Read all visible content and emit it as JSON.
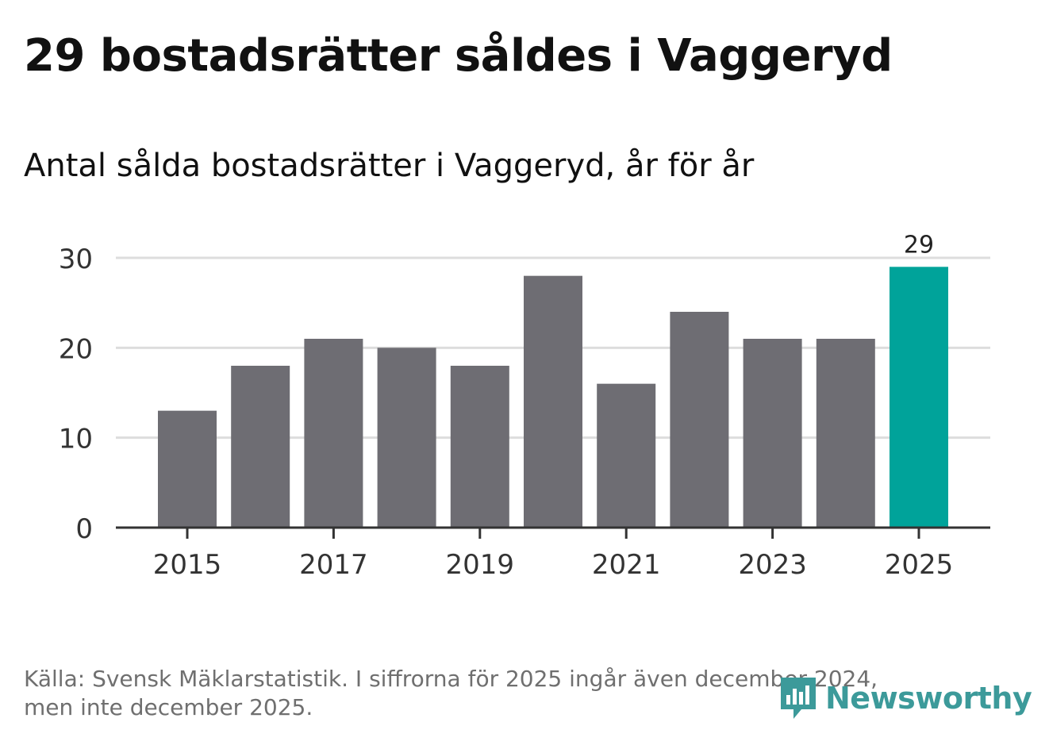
{
  "header": {
    "title": "29 bostadsrätter såldes i Vaggeryd",
    "subtitle": "Antal sålda bostadsrätter i Vaggeryd, år för år"
  },
  "chart_data": {
    "type": "bar",
    "categories": [
      "2015",
      "2016",
      "2017",
      "2018",
      "2019",
      "2020",
      "2021",
      "2022",
      "2023",
      "2024",
      "2025"
    ],
    "values": [
      13,
      18,
      21,
      20,
      18,
      28,
      16,
      24,
      21,
      21,
      29
    ],
    "x_tick_labels": [
      "2015",
      "2017",
      "2019",
      "2021",
      "2023",
      "2025"
    ],
    "y_ticks": [
      0,
      10,
      20,
      30
    ],
    "ylim": [
      0,
      30
    ],
    "highlight_index": 10,
    "highlight_label": "29",
    "colors": {
      "bar": "#6e6d73",
      "highlight": "#00a39a",
      "grid": "#dddddd",
      "axis": "#333333",
      "tick_text": "#333333"
    },
    "grid": true
  },
  "footer": {
    "source_line1": "Källa: Svensk Mäklarstatistik. I siffrorna för 2025 ingår även december 2024,",
    "source_line2": "men inte december 2025."
  },
  "brand": {
    "name": "Newsworthy",
    "icon": "newsworthy-logo-icon",
    "color": "#3c9a9a"
  }
}
